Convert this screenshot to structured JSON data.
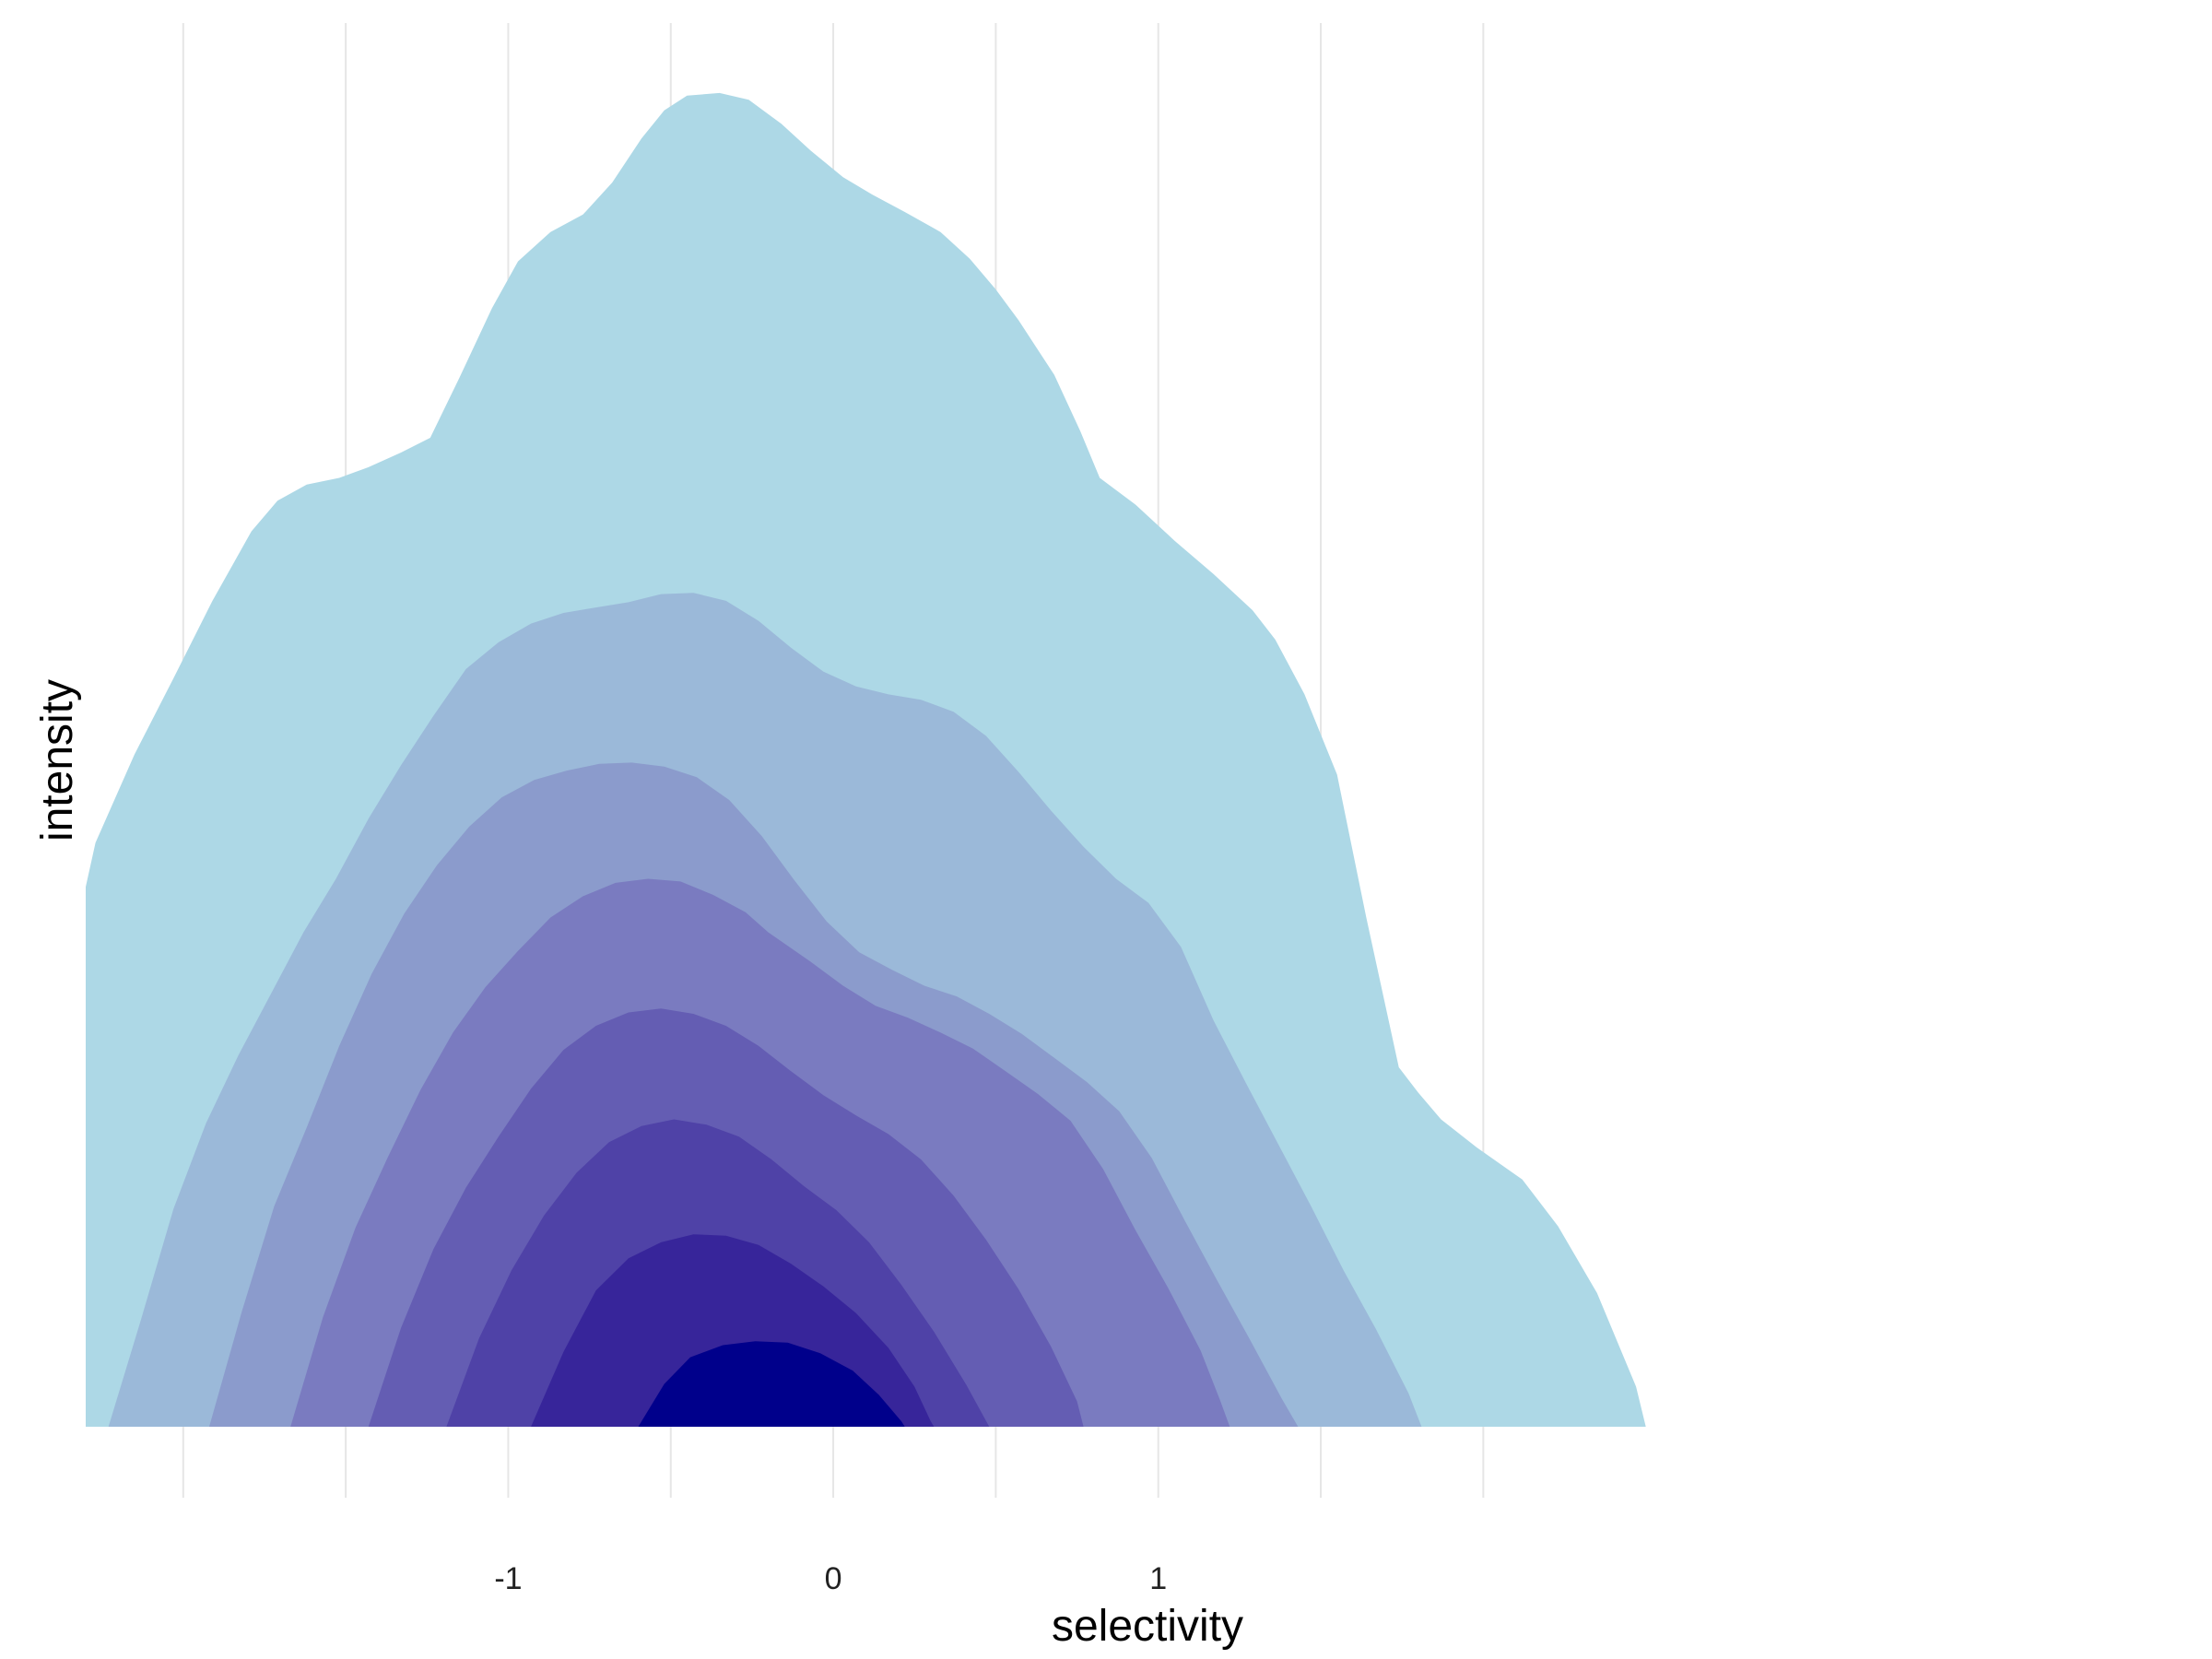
{
  "chart_data": {
    "type": "area",
    "title": "",
    "xlabel": "selectivity",
    "ylabel": "intensity",
    "xlim": [
      -2.3,
      3.0
    ],
    "ylim": [
      0,
      1
    ],
    "grid": "vertical only",
    "legend": "none",
    "x_ticks": [
      {
        "value": -1,
        "label": "-1"
      },
      {
        "value": 0,
        "label": "0"
      },
      {
        "value": 1,
        "label": "1"
      }
    ],
    "minor_gridlines": [
      -2,
      -1.5,
      -1,
      -0.5,
      0,
      0.5,
      1,
      1.5,
      2
    ],
    "colors": [
      "#add8e6",
      "#9bb9d9",
      "#8b9bcc",
      "#7a7bc0",
      "#645db3",
      "#4f42a7",
      "#37259a",
      "#00008b"
    ],
    "series": [
      {
        "level": 1,
        "color": "#add8e6",
        "points": [
          [
            -2.3,
            0.404
          ],
          [
            -2.27,
            0.437
          ],
          [
            -2.15,
            0.503
          ],
          [
            -2.03,
            0.56
          ],
          [
            -1.91,
            0.618
          ],
          [
            -1.79,
            0.67
          ],
          [
            -1.71,
            0.693
          ],
          [
            -1.62,
            0.705
          ],
          [
            -1.52,
            0.71
          ],
          [
            -1.43,
            0.718
          ],
          [
            -1.33,
            0.729
          ],
          [
            -1.24,
            0.74
          ],
          [
            -1.15,
            0.785
          ],
          [
            -1.05,
            0.837
          ],
          [
            -0.97,
            0.872
          ],
          [
            -0.87,
            0.894
          ],
          [
            -0.77,
            0.907
          ],
          [
            -0.68,
            0.931
          ],
          [
            -0.59,
            0.964
          ],
          [
            -0.52,
            0.985
          ],
          [
            -0.45,
            0.996
          ],
          [
            -0.35,
            0.998
          ],
          [
            -0.26,
            0.993
          ],
          [
            -0.16,
            0.975
          ],
          [
            -0.07,
            0.955
          ],
          [
            0.03,
            0.935
          ],
          [
            0.12,
            0.922
          ],
          [
            0.22,
            0.909
          ],
          [
            0.33,
            0.894
          ],
          [
            0.42,
            0.874
          ],
          [
            0.5,
            0.851
          ],
          [
            0.57,
            0.828
          ],
          [
            0.68,
            0.787
          ],
          [
            0.76,
            0.745
          ],
          [
            0.82,
            0.71
          ],
          [
            0.93,
            0.69
          ],
          [
            1.05,
            0.663
          ],
          [
            1.17,
            0.638
          ],
          [
            1.29,
            0.611
          ],
          [
            1.36,
            0.589
          ],
          [
            1.45,
            0.548
          ],
          [
            1.55,
            0.488
          ],
          [
            1.64,
            0.381
          ],
          [
            1.74,
            0.269
          ],
          [
            1.8,
            0.25
          ],
          [
            1.87,
            0.23
          ],
          [
            1.98,
            0.209
          ],
          [
            2.12,
            0.185
          ],
          [
            2.23,
            0.15
          ],
          [
            2.35,
            0.1
          ],
          [
            2.47,
            0.03
          ],
          [
            2.5,
            0
          ]
        ]
      },
      {
        "level": 2,
        "color": "#9bb9d9",
        "points": [
          [
            -2.23,
            0
          ],
          [
            -2.13,
            0.08
          ],
          [
            -2.03,
            0.163
          ],
          [
            -1.93,
            0.227
          ],
          [
            -1.83,
            0.278
          ],
          [
            -1.73,
            0.324
          ],
          [
            -1.63,
            0.37
          ],
          [
            -1.53,
            0.41
          ],
          [
            -1.43,
            0.455
          ],
          [
            -1.33,
            0.495
          ],
          [
            -1.23,
            0.532
          ],
          [
            -1.13,
            0.567
          ],
          [
            -1.03,
            0.587
          ],
          [
            -0.93,
            0.601
          ],
          [
            -0.83,
            0.609
          ],
          [
            -0.73,
            0.613
          ],
          [
            -0.63,
            0.617
          ],
          [
            -0.53,
            0.623
          ],
          [
            -0.43,
            0.624
          ],
          [
            -0.33,
            0.618
          ],
          [
            -0.23,
            0.603
          ],
          [
            -0.13,
            0.583
          ],
          [
            -0.03,
            0.565
          ],
          [
            0.07,
            0.554
          ],
          [
            0.17,
            0.548
          ],
          [
            0.27,
            0.544
          ],
          [
            0.37,
            0.535
          ],
          [
            0.47,
            0.517
          ],
          [
            0.57,
            0.49
          ],
          [
            0.67,
            0.461
          ],
          [
            0.77,
            0.434
          ],
          [
            0.87,
            0.41
          ],
          [
            0.97,
            0.392
          ],
          [
            1.07,
            0.359
          ],
          [
            1.17,
            0.304
          ],
          [
            1.27,
            0.257
          ],
          [
            1.37,
            0.211
          ],
          [
            1.47,
            0.165
          ],
          [
            1.57,
            0.117
          ],
          [
            1.67,
            0.073
          ],
          [
            1.77,
            0.025
          ],
          [
            1.81,
            0
          ]
        ]
      },
      {
        "level": 3,
        "color": "#8b9bcc",
        "points": [
          [
            -1.92,
            0
          ],
          [
            -1.82,
            0.086
          ],
          [
            -1.72,
            0.165
          ],
          [
            -1.62,
            0.224
          ],
          [
            -1.52,
            0.285
          ],
          [
            -1.42,
            0.339
          ],
          [
            -1.32,
            0.384
          ],
          [
            -1.22,
            0.42
          ],
          [
            -1.12,
            0.449
          ],
          [
            -1.02,
            0.471
          ],
          [
            -0.92,
            0.484
          ],
          [
            -0.82,
            0.491
          ],
          [
            -0.72,
            0.496
          ],
          [
            -0.62,
            0.497
          ],
          [
            -0.52,
            0.494
          ],
          [
            -0.42,
            0.486
          ],
          [
            -0.32,
            0.469
          ],
          [
            -0.22,
            0.442
          ],
          [
            -0.12,
            0.409
          ],
          [
            -0.02,
            0.378
          ],
          [
            0.08,
            0.355
          ],
          [
            0.18,
            0.342
          ],
          [
            0.28,
            0.33
          ],
          [
            0.38,
            0.322
          ],
          [
            0.48,
            0.309
          ],
          [
            0.58,
            0.294
          ],
          [
            0.68,
            0.276
          ],
          [
            0.78,
            0.258
          ],
          [
            0.88,
            0.236
          ],
          [
            0.98,
            0.201
          ],
          [
            1.08,
            0.155
          ],
          [
            1.18,
            0.11
          ],
          [
            1.28,
            0.066
          ],
          [
            1.38,
            0.021
          ],
          [
            1.43,
            0
          ]
        ]
      },
      {
        "level": 4,
        "color": "#7a7bc0",
        "points": [
          [
            -1.67,
            0
          ],
          [
            -1.57,
            0.082
          ],
          [
            -1.47,
            0.149
          ],
          [
            -1.37,
            0.202
          ],
          [
            -1.27,
            0.252
          ],
          [
            -1.17,
            0.295
          ],
          [
            -1.07,
            0.329
          ],
          [
            -0.97,
            0.356
          ],
          [
            -0.87,
            0.381
          ],
          [
            -0.77,
            0.397
          ],
          [
            -0.67,
            0.407
          ],
          [
            -0.57,
            0.41
          ],
          [
            -0.47,
            0.408
          ],
          [
            -0.37,
            0.398
          ],
          [
            -0.27,
            0.385
          ],
          [
            -0.2,
            0.37
          ],
          [
            -0.07,
            0.348
          ],
          [
            0.03,
            0.33
          ],
          [
            0.13,
            0.315
          ],
          [
            0.23,
            0.306
          ],
          [
            0.33,
            0.295
          ],
          [
            0.43,
            0.283
          ],
          [
            0.53,
            0.266
          ],
          [
            0.63,
            0.249
          ],
          [
            0.73,
            0.229
          ],
          [
            0.83,
            0.193
          ],
          [
            0.93,
            0.147
          ],
          [
            1.03,
            0.104
          ],
          [
            1.13,
            0.057
          ],
          [
            1.19,
            0.02
          ],
          [
            1.22,
            0
          ]
        ]
      },
      {
        "level": 5,
        "color": "#645db3",
        "points": [
          [
            -1.43,
            0
          ],
          [
            -1.33,
            0.074
          ],
          [
            -1.23,
            0.133
          ],
          [
            -1.13,
            0.179
          ],
          [
            -1.03,
            0.217
          ],
          [
            -0.93,
            0.253
          ],
          [
            -0.83,
            0.282
          ],
          [
            -0.73,
            0.3
          ],
          [
            -0.63,
            0.31
          ],
          [
            -0.53,
            0.313
          ],
          [
            -0.43,
            0.309
          ],
          [
            -0.33,
            0.3
          ],
          [
            -0.23,
            0.285
          ],
          [
            -0.13,
            0.266
          ],
          [
            -0.03,
            0.248
          ],
          [
            0.07,
            0.233
          ],
          [
            0.17,
            0.219
          ],
          [
            0.27,
            0.2
          ],
          [
            0.37,
            0.173
          ],
          [
            0.47,
            0.14
          ],
          [
            0.57,
            0.103
          ],
          [
            0.67,
            0.06
          ],
          [
            0.75,
            0.019
          ],
          [
            0.77,
            0
          ]
        ]
      },
      {
        "level": 6,
        "color": "#4f42a7",
        "points": [
          [
            -1.19,
            0
          ],
          [
            -1.09,
            0.066
          ],
          [
            -0.99,
            0.117
          ],
          [
            -0.89,
            0.158
          ],
          [
            -0.79,
            0.19
          ],
          [
            -0.69,
            0.213
          ],
          [
            -0.59,
            0.225
          ],
          [
            -0.49,
            0.23
          ],
          [
            -0.39,
            0.226
          ],
          [
            -0.29,
            0.217
          ],
          [
            -0.19,
            0.2
          ],
          [
            -0.09,
            0.18
          ],
          [
            0.01,
            0.162
          ],
          [
            0.11,
            0.138
          ],
          [
            0.21,
            0.106
          ],
          [
            0.31,
            0.071
          ],
          [
            0.41,
            0.031
          ],
          [
            0.48,
            0
          ]
        ]
      },
      {
        "level": 7,
        "color": "#37259a",
        "points": [
          [
            -0.93,
            0
          ],
          [
            -0.83,
            0.056
          ],
          [
            -0.73,
            0.102
          ],
          [
            -0.63,
            0.126
          ],
          [
            -0.53,
            0.138
          ],
          [
            -0.43,
            0.144
          ],
          [
            -0.33,
            0.143
          ],
          [
            -0.23,
            0.136
          ],
          [
            -0.13,
            0.122
          ],
          [
            -0.03,
            0.105
          ],
          [
            0.07,
            0.085
          ],
          [
            0.17,
            0.059
          ],
          [
            0.25,
            0.03
          ],
          [
            0.3,
            0.004
          ],
          [
            0.31,
            0
          ]
        ]
      },
      {
        "level": 8,
        "color": "#00008b",
        "points": [
          [
            -0.6,
            0
          ],
          [
            -0.52,
            0.032
          ],
          [
            -0.44,
            0.052
          ],
          [
            -0.34,
            0.061
          ],
          [
            -0.24,
            0.064
          ],
          [
            -0.14,
            0.063
          ],
          [
            -0.04,
            0.055
          ],
          [
            0.06,
            0.042
          ],
          [
            0.14,
            0.024
          ],
          [
            0.21,
            0.004
          ],
          [
            0.22,
            0
          ]
        ]
      }
    ]
  }
}
